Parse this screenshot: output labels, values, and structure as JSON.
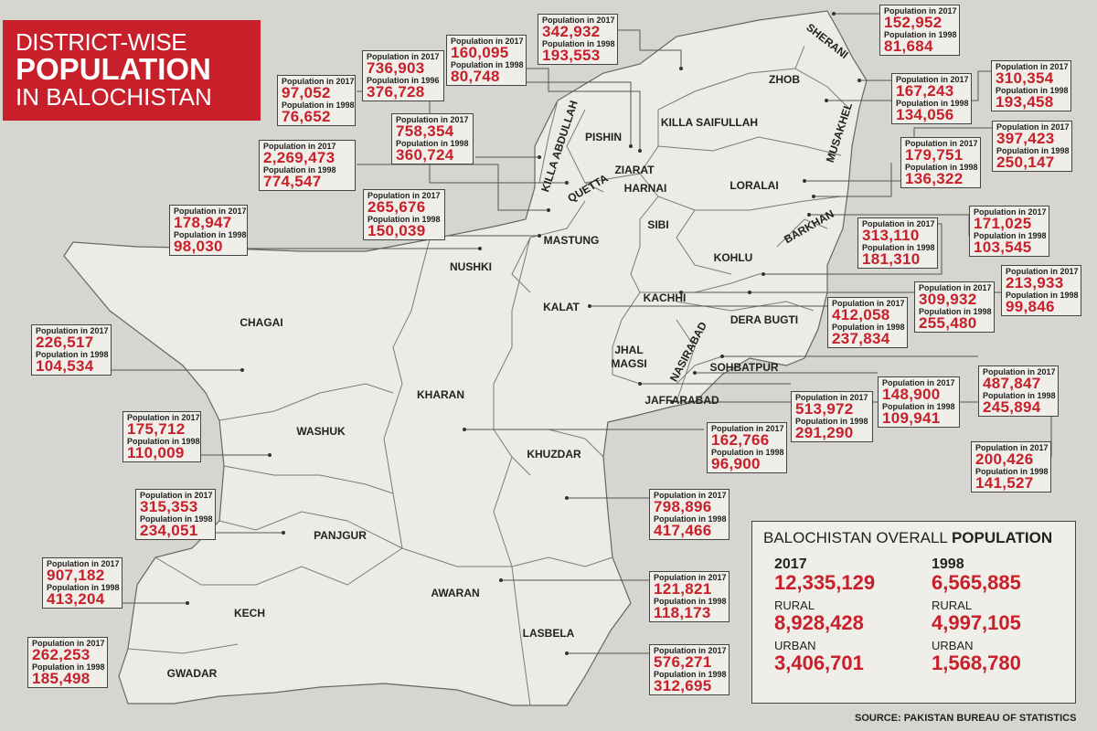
{
  "title": {
    "line1": "DISTRICT-WISE",
    "line2": "POPULATION",
    "line3": "IN BALOCHISTAN"
  },
  "labels": {
    "y2017": "Population in 2017",
    "y1998": "Population in 1998",
    "y1996": "Population in 1996"
  },
  "districts": {
    "sherani": "SHERANI",
    "zhob": "ZHOB",
    "musakhel": "MUSAKHEL",
    "killa_saifullah": "KILLA SAIFULLAH",
    "killa_abdullah": "KILLA ABDULLAH",
    "pishin": "PISHIN",
    "ziarat": "ZIARAT",
    "quetta": "QUETTA",
    "harnai": "HARNAI",
    "loralai": "LORALAI",
    "barkhan": "BARKHAN",
    "sibi": "SIBI",
    "kohlu": "KOHLU",
    "mastung": "MASTUNG",
    "nushki": "NUSHKI",
    "chagai": "CHAGAI",
    "kalat": "KALAT",
    "kachhi": "KACHHI",
    "dera_bugti": "DERA BUGTI",
    "jhal_magsi": "JHAL\nMAGSI",
    "nasirabad": "NASIRABAD",
    "sohbatpur": "SOHBATPUR",
    "jaffarabad": "JAFFARABAD",
    "kharan": "KHARAN",
    "washuk": "WASHUK",
    "khuzdar": "KHUZDAR",
    "panjgur": "PANJGUR",
    "kech": "KECH",
    "awaran": "AWARAN",
    "lasbela": "LASBELA",
    "gwadar": "GWADAR"
  },
  "boxes": [
    {
      "id": "sherani",
      "p2017": "152,952",
      "p1998": "81,684"
    },
    {
      "id": "zhob",
      "p2017": "310,354",
      "p1998": "193,458"
    },
    {
      "id": "musakhel",
      "p2017": "167,243",
      "p1998": "134,056"
    },
    {
      "id": "loralai",
      "p2017": "397,423",
      "p1998": "250,147"
    },
    {
      "id": "ks",
      "p2017": "342,932",
      "p1998": "193,553"
    },
    {
      "id": "ziarat",
      "p2017": "160,095",
      "p1998": "80,748"
    },
    {
      "id": "pishin",
      "p2017": "736,903",
      "p1998": "376,728"
    },
    {
      "id": "ka",
      "p2017": "758,354",
      "p1998": "360,724"
    },
    {
      "id": "harnai",
      "p2017": "97,052",
      "p1998": "76,652"
    },
    {
      "id": "quetta",
      "p2017": "2,269,473",
      "p1998": "774,547"
    },
    {
      "id": "mastung",
      "p2017": "265,676",
      "p1998": "150,039"
    },
    {
      "id": "nushki",
      "p2017": "178,947",
      "p1998": "98,030"
    },
    {
      "id": "barkhan",
      "p2017": "179,751",
      "p1998": "136,322"
    },
    {
      "id": "sibi",
      "p2017": "171,025",
      "p1998": "103,545"
    },
    {
      "id": "kohlu",
      "p2017": "313,110",
      "p1998": "181,310"
    },
    {
      "id": "derabugti",
      "p2017": "309,932",
      "p1998": "255,480"
    },
    {
      "id": "kachhi",
      "p2017": "213,933",
      "p1998": "99,846"
    },
    {
      "id": "kalat",
      "p2017": "412,058",
      "p1998": "237,834"
    },
    {
      "id": "chagai",
      "p2017": "226,517",
      "p1998": "104,534"
    },
    {
      "id": "nasirabad",
      "p2017": "487,847",
      "p1998": "245,894"
    },
    {
      "id": "sohbatpur",
      "p2017": "148,900",
      "p1998": "109,941"
    },
    {
      "id": "jhalmagsi",
      "p2017": "513,972",
      "p1998": "291,290"
    },
    {
      "id": "kharan",
      "p2017": "162,766",
      "p1998": "96,900"
    },
    {
      "id": "jaffarabad",
      "p2017": "200,426",
      "p1998": "141,527"
    },
    {
      "id": "washuk",
      "p2017": "175,712",
      "p1998": "110,009"
    },
    {
      "id": "khuzdar",
      "p2017": "798,896",
      "p1998": "417,466"
    },
    {
      "id": "panjgur",
      "p2017": "315,353",
      "p1998": "234,051"
    },
    {
      "id": "kech",
      "p2017": "907,182",
      "p1998": "413,204"
    },
    {
      "id": "awaran",
      "p2017": "121,821",
      "p1998": "118,173"
    },
    {
      "id": "lasbela",
      "p2017": "576,271",
      "p1998": "312,695"
    },
    {
      "id": "gwadar",
      "p2017": "262,253",
      "p1998": "185,498"
    }
  ],
  "summary": {
    "heading_light": "BALOCHISTAN OVERALL ",
    "heading_bold": "POPULATION",
    "y2017": "2017",
    "total2017": "12,335,129",
    "y1998": "1998",
    "total1998": "6,565,885",
    "rural_label": "RURAL",
    "rural2017": "8,928,428",
    "rural1998": "4,997,105",
    "urban_label": "URBAN",
    "urban2017": "3,406,701",
    "urban1998": "1,568,780"
  },
  "source": "SOURCE: PAKISTAN BUREAU OF STATISTICS",
  "colors": {
    "accent": "#c8202a",
    "land": "#ecebe5",
    "background": "#d6d5d0"
  }
}
